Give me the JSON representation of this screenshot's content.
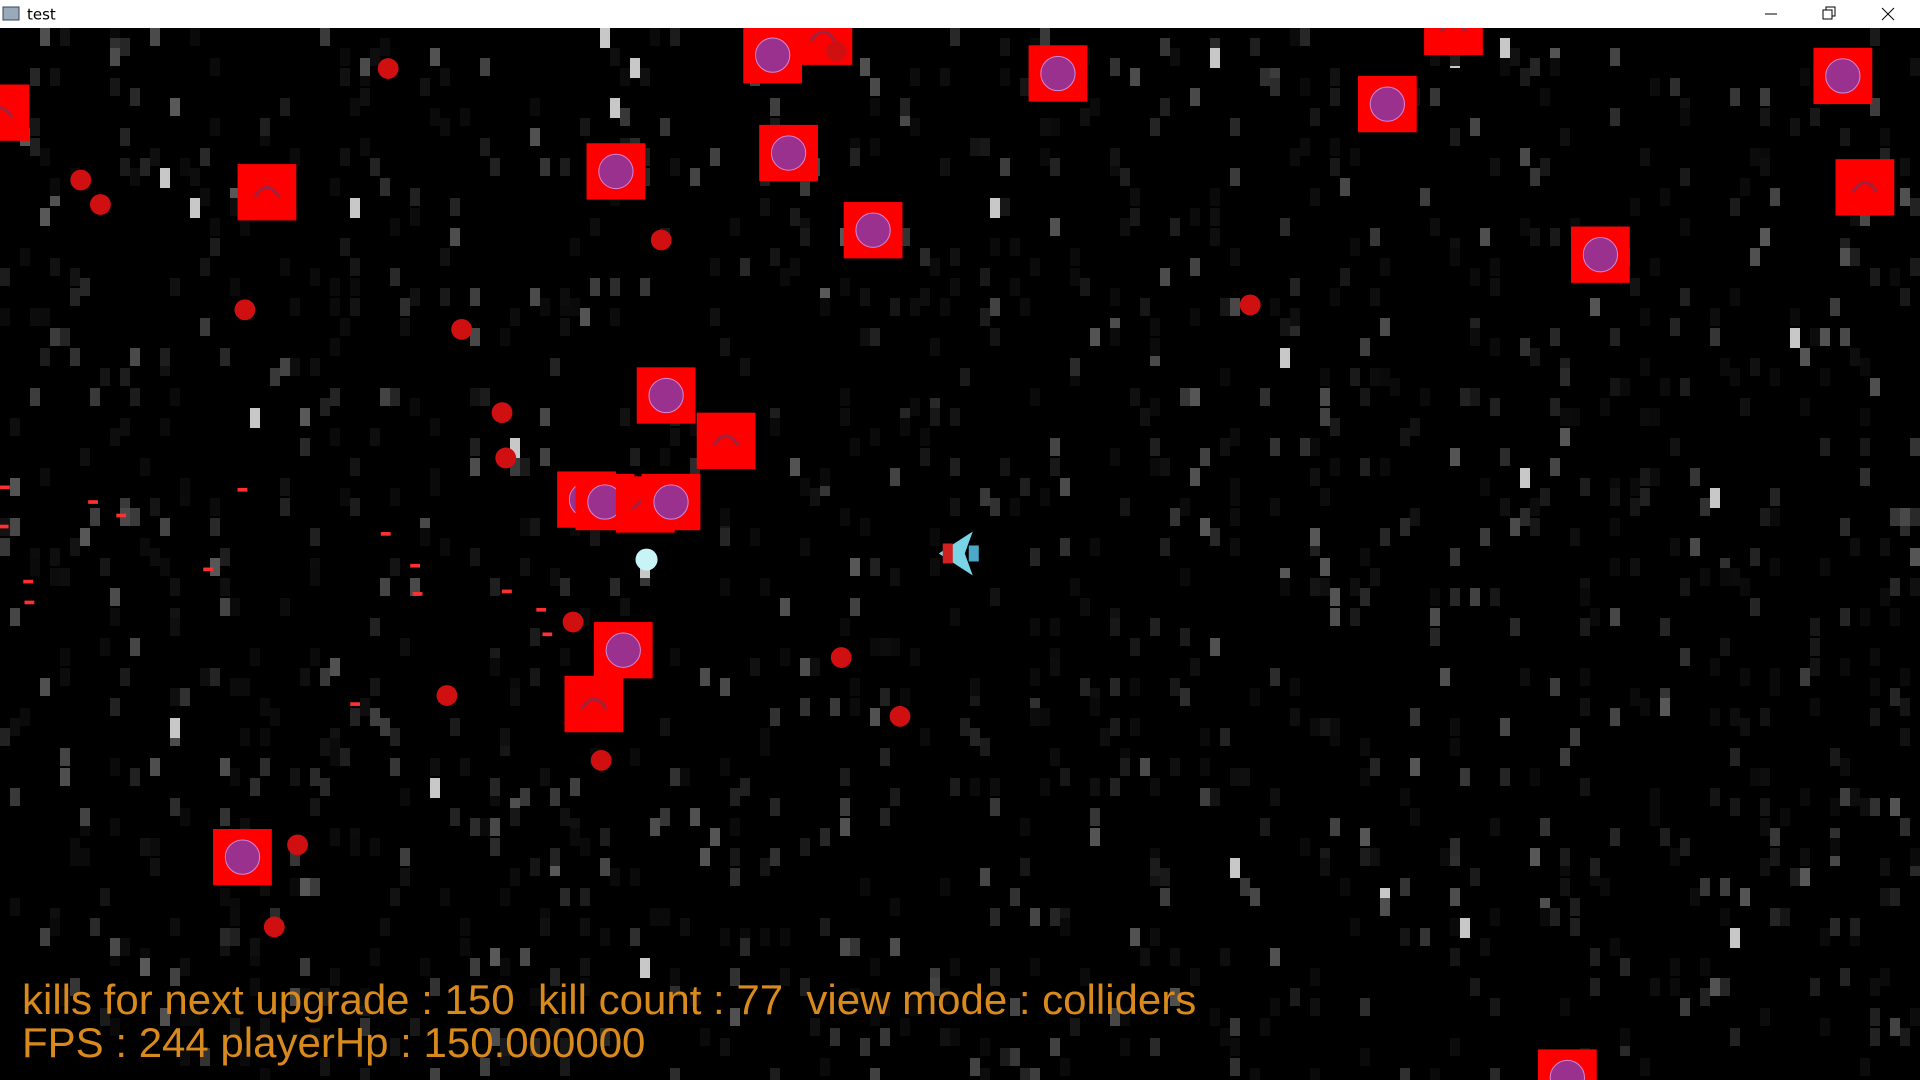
{
  "window": {
    "title": "test"
  },
  "hud": {
    "line1": "kills for next upgrade : 150  kill count : 77  view mode : colliders",
    "line2": "FPS : 244 playerHp : 150.000000"
  }
}
